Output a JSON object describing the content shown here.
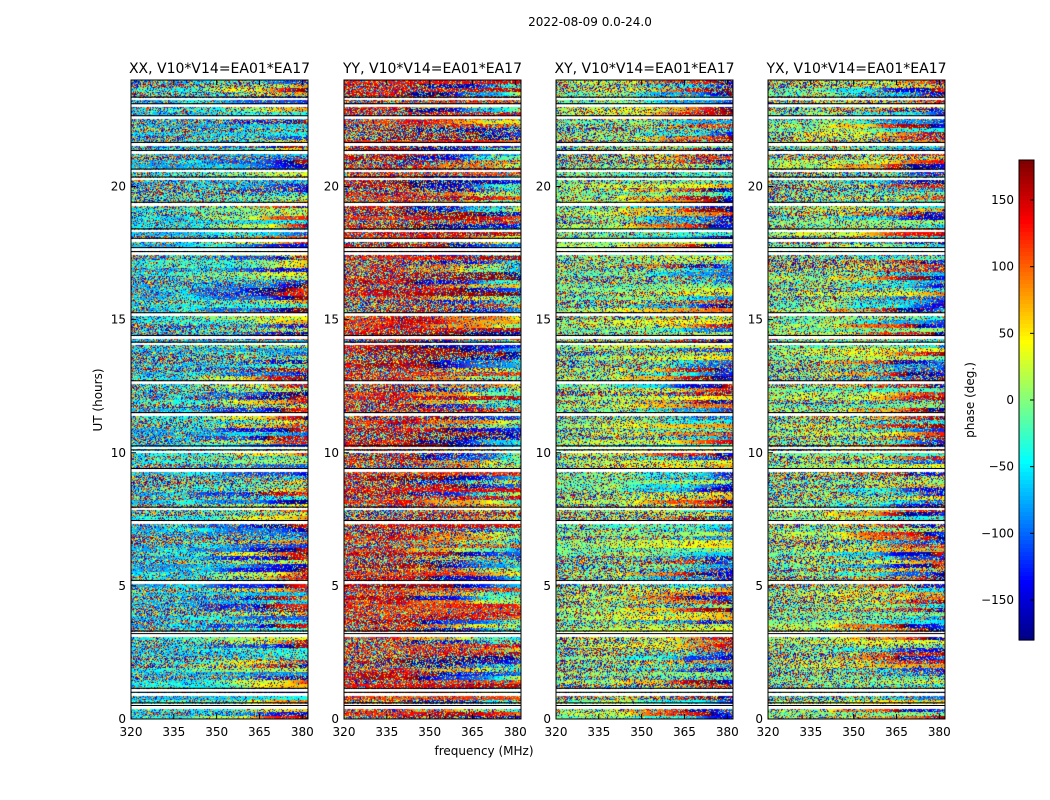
{
  "figure": {
    "suptitle": "2022-08-09 0.0-24.0",
    "xlabel": "frequency (MHz)",
    "ylabel": "UT (hours)",
    "colorbar_label": "phase (deg.)",
    "colorbar_ticks": [
      "150",
      "100",
      "50",
      "0",
      "−50",
      "−100",
      "−150"
    ]
  },
  "chart_data": {
    "type": "heatmap",
    "subtype": "waterfall phase plot (dynamic spectrum)",
    "colormap": "jet",
    "x_range_mhz": [
      320,
      382
    ],
    "y_range_hours": [
      0,
      24
    ],
    "color_range_deg": [
      -180,
      180
    ],
    "xticks": [
      320,
      335,
      350,
      365,
      380
    ],
    "yticks": [
      0,
      5,
      10,
      15,
      20
    ],
    "colorbar_tick_values": [
      150,
      100,
      50,
      0,
      -50,
      -100,
      -150
    ],
    "panels": [
      {
        "title": "XX, V10*V14=EA01*EA17",
        "dominant_phase_deg": -60
      },
      {
        "title": "YY, V10*V14=EA01*EA17",
        "dominant_phase_deg": 130
      },
      {
        "title": "XY, V10*V14=EA01*EA17",
        "dominant_phase_deg": 0
      },
      {
        "title": "YX, V10*V14=EA01*EA17",
        "dominant_phase_deg": 0
      }
    ],
    "flagged_gaps_hours": [
      0.45,
      0.55,
      0.95,
      1.1,
      3.15,
      3.25,
      5.15,
      7.4,
      7.9,
      9.35,
      10.05,
      10.2,
      11.45,
      12.65,
      14.1,
      14.35,
      15.2,
      17.5,
      17.65,
      18.0,
      18.35,
      19.35,
      20.3,
      20.6,
      21.3,
      21.6,
      22.6,
      23.05,
      23.3
    ]
  }
}
